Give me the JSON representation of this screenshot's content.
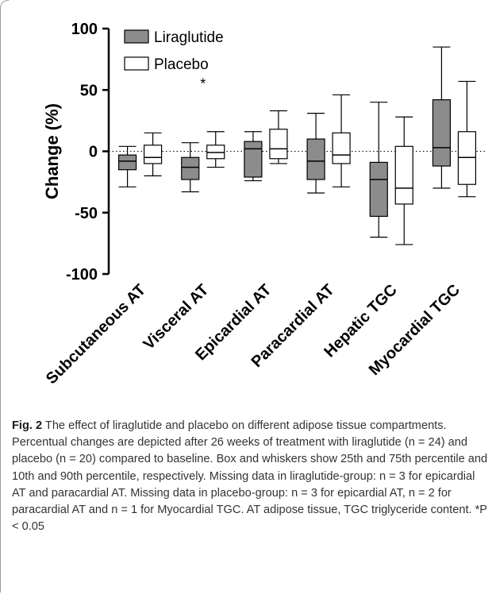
{
  "chart_data": {
    "type": "box",
    "ylabel": "Change  (%)",
    "ylim": [
      -100,
      100
    ],
    "yticks": [
      100,
      50,
      0,
      -50,
      -100
    ],
    "categories": [
      "Subcutaneous AT",
      "Visceral AT",
      "Epicardial AT",
      "Paracardial AT",
      "Hepatic TGC",
      "Myocardial TGC"
    ],
    "legend_position": "top-left",
    "series": [
      {
        "name": "Liraglutide",
        "color": "#8c8c8c",
        "boxes": [
          {
            "p10": -29,
            "q1": -15,
            "median": -8,
            "q3": -3,
            "p90": 4
          },
          {
            "p10": -33,
            "q1": -23,
            "median": -13,
            "q3": -5,
            "p90": 7
          },
          {
            "p10": -24,
            "q1": -21,
            "median": 2,
            "q3": 8,
            "p90": 16
          },
          {
            "p10": -34,
            "q1": -23,
            "median": -8,
            "q3": 10,
            "p90": 31
          },
          {
            "p10": -70,
            "q1": -53,
            "median": -23,
            "q3": -9,
            "p90": 40
          },
          {
            "p10": -30,
            "q1": -12,
            "median": 3,
            "q3": 42,
            "p90": 85
          }
        ]
      },
      {
        "name": "Placebo",
        "color": "#ffffff",
        "boxes": [
          {
            "p10": -20,
            "q1": -10,
            "median": -5,
            "q3": 5,
            "p90": 15
          },
          {
            "p10": -13,
            "q1": -6,
            "median": -1,
            "q3": 5,
            "p90": 16
          },
          {
            "p10": -10,
            "q1": -6,
            "median": 2,
            "q3": 18,
            "p90": 33
          },
          {
            "p10": -29,
            "q1": -10,
            "median": -3,
            "q3": 15,
            "p90": 46
          },
          {
            "p10": -76,
            "q1": -43,
            "median": -30,
            "q3": 4,
            "p90": 28
          },
          {
            "p10": -37,
            "q1": -27,
            "median": -5,
            "q3": 16,
            "p90": 57
          }
        ]
      }
    ],
    "annotations": [
      {
        "text": "*",
        "category": "Visceral AT",
        "y": 55
      }
    ],
    "reference_line": {
      "y": 0,
      "style": "dotted"
    }
  },
  "caption": {
    "label": "Fig. 2",
    "text": "The effect of liraglutide and placebo on different adipose tissue compartments. Percentual changes are depicted after 26 weeks of treatment with liraglutide (n = 24) and placebo (n = 20) compared to baseline. Box and whiskers show 25th and 75th percentile and 10th and 90th percentile, respectively. Missing data in liraglutide-group: n = 3 for epicardial AT and paracardial AT. Missing data in placebo-group: n = 3 for epicardial AT, n = 2 for paracardial AT and n = 1 for Myocardial TGC. AT adipose tissue, TGC triglyceride content. *P < 0.05"
  }
}
